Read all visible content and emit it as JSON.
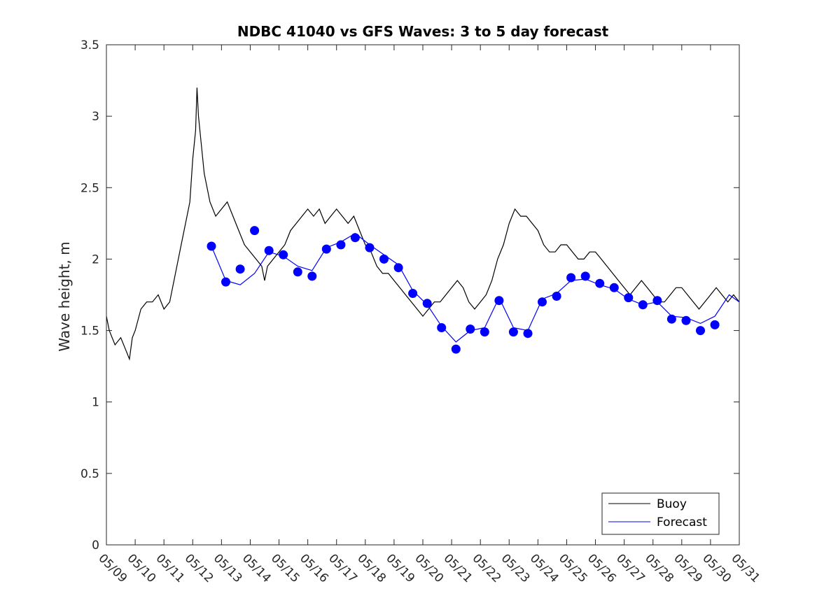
{
  "chart_data": {
    "type": "line",
    "title": "NDBC 41040 vs GFS Waves: 3 to 5 day forecast",
    "xlabel": "",
    "ylabel": "Wave height, m",
    "xlim": [
      "05/09",
      "05/31"
    ],
    "ylim": [
      0,
      3.5
    ],
    "yticks": [
      "0",
      "0.5",
      "1",
      "1.5",
      "2",
      "2.5",
      "3",
      "3.5"
    ],
    "xticks": [
      "05/09",
      "05/10",
      "05/11",
      "05/12",
      "05/13",
      "05/14",
      "05/15",
      "05/16",
      "05/17",
      "05/18",
      "05/19",
      "05/20",
      "05/21",
      "05/22",
      "05/23",
      "05/24",
      "05/25",
      "05/26",
      "05/27",
      "05/28",
      "05/29",
      "05/30",
      "05/31"
    ],
    "grid": false,
    "legend": {
      "placement": "bottom-right",
      "entries": [
        "Buoy",
        "Forecast"
      ]
    },
    "colors": {
      "buoy": "#000000",
      "forecast": "#0000ff",
      "markers": "#0000ff"
    },
    "series": [
      {
        "name": "Buoy",
        "x_days_from_0509": [
          0.0,
          0.1,
          0.2,
          0.3,
          0.5,
          0.7,
          0.8,
          0.9,
          1.0,
          1.2,
          1.4,
          1.6,
          1.8,
          2.0,
          2.2,
          2.4,
          2.6,
          2.8,
          2.9,
          3.0,
          3.1,
          3.15,
          3.2,
          3.3,
          3.4,
          3.5,
          3.6,
          3.8,
          4.0,
          4.2,
          4.4,
          4.6,
          4.8,
          5.0,
          5.2,
          5.4,
          5.5,
          5.6,
          5.8,
          6.0,
          6.2,
          6.4,
          6.6,
          6.8,
          7.0,
          7.2,
          7.4,
          7.6,
          7.8,
          8.0,
          8.2,
          8.4,
          8.6,
          8.8,
          9.0,
          9.2,
          9.4,
          9.6,
          9.8,
          10.0,
          10.2,
          10.4,
          10.6,
          10.8,
          11.0,
          11.2,
          11.4,
          11.6,
          11.8,
          12.0,
          12.2,
          12.4,
          12.6,
          12.8,
          13.0,
          13.2,
          13.4,
          13.6,
          13.8,
          14.0,
          14.2,
          14.4,
          14.6,
          14.8,
          15.0,
          15.2,
          15.4,
          15.6,
          15.8,
          16.0,
          16.2,
          16.4,
          16.6,
          16.8,
          17.0,
          17.2,
          17.4,
          17.6,
          17.8,
          18.0,
          18.2,
          18.4,
          18.6,
          18.8,
          19.0,
          19.2,
          19.4,
          19.6,
          19.8,
          20.0,
          20.2,
          20.4,
          20.6,
          20.8,
          21.0,
          21.2,
          21.4,
          21.6,
          21.8,
          22.0
        ],
        "values": [
          1.6,
          1.5,
          1.45,
          1.4,
          1.45,
          1.35,
          1.3,
          1.45,
          1.5,
          1.65,
          1.7,
          1.7,
          1.75,
          1.65,
          1.7,
          1.9,
          2.1,
          2.3,
          2.4,
          2.7,
          2.9,
          3.2,
          3.0,
          2.8,
          2.6,
          2.5,
          2.4,
          2.3,
          2.35,
          2.4,
          2.3,
          2.2,
          2.1,
          2.05,
          2.0,
          1.95,
          1.85,
          1.95,
          2.0,
          2.05,
          2.1,
          2.2,
          2.25,
          2.3,
          2.35,
          2.3,
          2.35,
          2.25,
          2.3,
          2.35,
          2.3,
          2.25,
          2.3,
          2.2,
          2.1,
          2.05,
          1.95,
          1.9,
          1.9,
          1.85,
          1.8,
          1.75,
          1.7,
          1.65,
          1.6,
          1.65,
          1.7,
          1.7,
          1.75,
          1.8,
          1.85,
          1.8,
          1.7,
          1.65,
          1.7,
          1.75,
          1.85,
          2.0,
          2.1,
          2.25,
          2.35,
          2.3,
          2.3,
          2.25,
          2.2,
          2.1,
          2.05,
          2.05,
          2.1,
          2.1,
          2.05,
          2.0,
          2.0,
          2.05,
          2.05,
          2.0,
          1.95,
          1.9,
          1.85,
          1.8,
          1.75,
          1.8,
          1.85,
          1.8,
          1.75,
          1.7,
          1.7,
          1.75,
          1.8,
          1.8,
          1.75,
          1.7,
          1.65,
          1.7,
          1.75,
          1.8,
          1.75,
          1.7,
          1.75,
          1.7,
          1.7
        ]
      },
      {
        "name": "Forecast",
        "markers": {
          "x_days_from_0509": [
            3.65,
            4.15,
            4.65,
            5.15,
            5.65,
            6.15,
            6.65,
            7.15,
            7.65,
            8.15,
            8.65,
            9.15,
            9.65,
            10.15,
            10.65,
            11.15,
            11.65,
            12.15,
            12.65,
            13.15,
            13.65,
            14.15,
            14.65,
            15.15,
            15.65,
            16.15,
            16.65,
            17.15,
            17.65,
            18.15,
            18.65,
            19.15,
            19.65,
            20.15,
            20.65,
            21.15
          ],
          "values": [
            2.09,
            1.84,
            1.93,
            2.2,
            2.06,
            2.03,
            1.91,
            1.88,
            2.07,
            2.1,
            2.15,
            2.08,
            2.0,
            1.94,
            1.76,
            1.69,
            1.52,
            1.37,
            1.51,
            1.49,
            1.71,
            1.49,
            1.48,
            1.7,
            1.74,
            1.87,
            1.88,
            1.83,
            1.8,
            1.73,
            1.68,
            1.71,
            1.58,
            1.57,
            1.5,
            1.54
          ]
        },
        "x_days_from_0509": [
          3.65,
          4.15,
          4.65,
          5.15,
          5.65,
          6.15,
          6.65,
          7.15,
          7.65,
          8.15,
          8.65,
          9.15,
          9.65,
          10.15,
          10.65,
          11.15,
          11.65,
          12.15,
          12.65,
          13.15,
          13.65,
          14.15,
          14.65,
          15.15,
          15.65,
          16.15,
          16.65,
          17.15,
          17.65,
          18.15,
          18.65,
          19.15,
          19.65,
          20.15,
          20.65,
          21.15,
          21.65,
          22.0
        ],
        "values": [
          2.09,
          1.85,
          1.82,
          1.9,
          2.05,
          2.02,
          1.95,
          1.92,
          2.08,
          2.12,
          2.18,
          2.1,
          2.03,
          1.96,
          1.78,
          1.68,
          1.53,
          1.42,
          1.5,
          1.52,
          1.73,
          1.52,
          1.5,
          1.72,
          1.76,
          1.85,
          1.86,
          1.82,
          1.79,
          1.72,
          1.68,
          1.7,
          1.6,
          1.59,
          1.55,
          1.6,
          1.75,
          1.7
        ]
      }
    ]
  }
}
